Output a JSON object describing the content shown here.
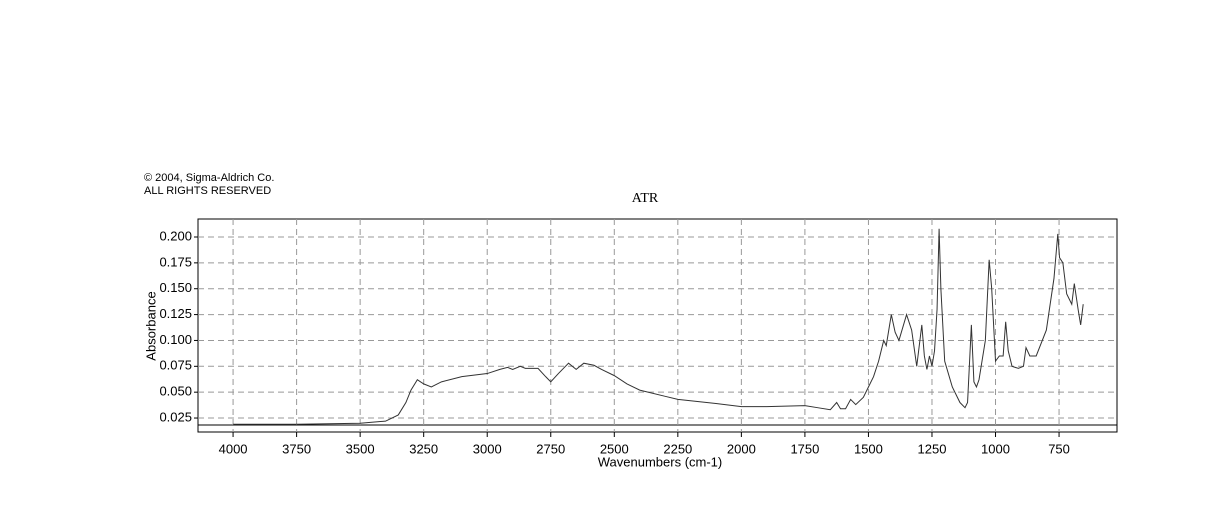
{
  "chart_data": {
    "type": "line",
    "annotations": [
      "© 2004, Sigma-Aldrich Co.",
      "ALL RIGHTS RESERVED"
    ],
    "title": "ATR",
    "x_label": "Wavenumbers (cm-1)",
    "y_label": "Absorbance",
    "color": "#333333",
    "grid": true,
    "xlim": [
      4138,
      522
    ],
    "ylim": [
      0.0115,
      0.2174
    ],
    "xticks": [
      4000,
      3750,
      3500,
      3250,
      3000,
      2750,
      2500,
      2250,
      2000,
      1750,
      1500,
      1250,
      1000,
      750
    ],
    "yticks": [
      0.025,
      {
        "value": 0.05,
        "label": "0.050"
      },
      0.075,
      {
        "value": 0.1,
        "label": "0.100"
      },
      0.125,
      {
        "value": 0.15,
        "label": "0.150"
      },
      0.175,
      {
        "value": 0.2,
        "label": "0.200"
      }
    ],
    "x": [
      4000,
      3750,
      3500,
      3400,
      3350,
      3320,
      3300,
      3275,
      3250,
      3220,
      3180,
      3100,
      3000,
      2950,
      2920,
      2900,
      2870,
      2850,
      2800,
      2770,
      2750,
      2720,
      2680,
      2650,
      2620,
      2580,
      2550,
      2500,
      2450,
      2400,
      2300,
      2250,
      2100,
      2000,
      1900,
      1750,
      1700,
      1650,
      1625,
      1610,
      1590,
      1570,
      1550,
      1520,
      1500,
      1480,
      1460,
      1440,
      1430,
      1410,
      1395,
      1380,
      1350,
      1330,
      1310,
      1290,
      1280,
      1270,
      1260,
      1250,
      1240,
      1230,
      1222,
      1215,
      1200,
      1170,
      1140,
      1120,
      1110,
      1095,
      1085,
      1075,
      1065,
      1040,
      1025,
      1015,
      1000,
      985,
      970,
      960,
      950,
      935,
      910,
      890,
      880,
      865,
      840,
      800,
      770,
      755,
      748,
      735,
      720,
      700,
      690,
      675,
      665,
      655
    ],
    "values": [
      0.019,
      0.019,
      0.02,
      0.022,
      0.028,
      0.04,
      0.052,
      0.062,
      0.058,
      0.055,
      0.06,
      0.065,
      0.068,
      0.072,
      0.074,
      0.072,
      0.075,
      0.073,
      0.073,
      0.065,
      0.06,
      0.068,
      0.078,
      0.072,
      0.078,
      0.076,
      0.072,
      0.066,
      0.058,
      0.052,
      0.046,
      0.043,
      0.039,
      0.036,
      0.036,
      0.037,
      0.035,
      0.033,
      0.04,
      0.034,
      0.034,
      0.043,
      0.038,
      0.045,
      0.055,
      0.065,
      0.08,
      0.1,
      0.095,
      0.125,
      0.108,
      0.1,
      0.125,
      0.11,
      0.075,
      0.115,
      0.085,
      0.072,
      0.085,
      0.075,
      0.09,
      0.13,
      0.208,
      0.15,
      0.08,
      0.055,
      0.04,
      0.035,
      0.04,
      0.115,
      0.06,
      0.055,
      0.062,
      0.1,
      0.178,
      0.15,
      0.08,
      0.085,
      0.085,
      0.118,
      0.09,
      0.075,
      0.073,
      0.075,
      0.093,
      0.085,
      0.085,
      0.11,
      0.16,
      0.203,
      0.18,
      0.175,
      0.145,
      0.135,
      0.155,
      0.13,
      0.115,
      0.135
    ]
  }
}
